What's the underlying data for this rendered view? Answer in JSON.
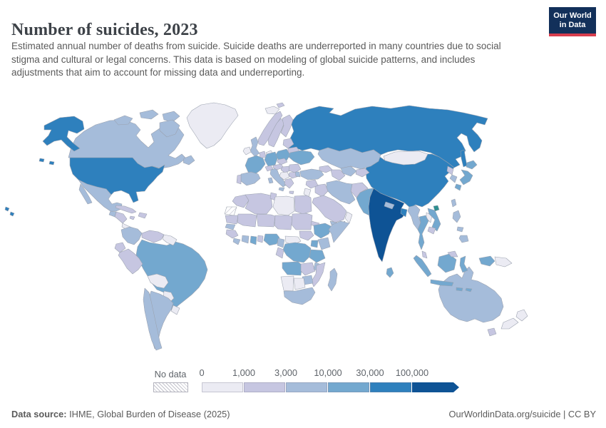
{
  "header": {
    "title": "Number of suicides, 2023",
    "subtitle_part1": "Estimated annual number of deaths from suicide. Suicide deaths are underreported in many countries due to social",
    "subtitle_part2": "stigma and cultural or legal concerns. This data is based on modeling of global suicide patterns, and includes adjustments that aim to account for missing data and underreporting."
  },
  "logo": {
    "line1": "Our World",
    "line2": "in Data"
  },
  "legend": {
    "no_data_label": "No data",
    "tick_labels": [
      "0",
      "1,000",
      "3,000",
      "10,000",
      "30,000",
      "100,000"
    ]
  },
  "footer": {
    "source_label": "Data source:",
    "source_value": " IHME, Global Burden of Disease (2025)",
    "right_text": "OurWorldinData.org/suicide | CC BY"
  },
  "chart_data": {
    "type": "choropleth_map",
    "title": "Number of suicides, 2023",
    "year": "2023",
    "bin_edges": [
      "0",
      "1,000",
      "3,000",
      "10,000",
      "30,000",
      "100,000",
      "open-ended"
    ],
    "bin_colors": [
      "#ebebf3",
      "#c6c6e1",
      "#a5bcda",
      "#73a8cf",
      "#2e80bd",
      "#0e5395"
    ],
    "no_data_style": "white-diagonal-hatch",
    "special_marker_color": "#2e8f8f",
    "border_color": "#9aa1ae",
    "country_bins": {
      "greenland": 0,
      "canada": 2,
      "canada-arctic-1": 2,
      "canada-arctic-2": 2,
      "canada-arctic-3": 2,
      "canada-arctic-4": 2,
      "newfoundland": 2,
      "alaska": 4,
      "usa": 4,
      "hawaii-1": 4,
      "hawaii-2": 4,
      "aleutians-1": 4,
      "aleutians-2": 4,
      "mexico": 2,
      "mexico-baja": 2,
      "guatemala": 2,
      "honduras-nicaragua": 1,
      "costa-rica-panama": 0,
      "cuba": 1,
      "hispaniola": 1,
      "jamaica": 1,
      "colombia": 2,
      "venezuela": 1,
      "guyanas": 0,
      "ecuador": 1,
      "peru": 1,
      "brazil": 3,
      "bolivia": 0,
      "paraguay": 0,
      "argentina": 2,
      "chile": 2,
      "uruguay": 0,
      "iceland": 0,
      "norway": 1,
      "sweden": 1,
      "finland": 1,
      "denmark": 0,
      "uk": 2,
      "ireland": 0,
      "baltics": 1,
      "belarus": 1,
      "poland": 3,
      "germany": 3,
      "netherlands-belgium": 1,
      "france": 3,
      "spain": 2,
      "portugal": 1,
      "italy": 2,
      "sicily": 2,
      "sardinia": 2,
      "switzerland": 1,
      "czechia": 1,
      "austria": 1,
      "hungary": 1,
      "romania": 1,
      "balkans": 0,
      "bulgaria": 1,
      "greece": 1,
      "crete": 1,
      "ukraine": 3,
      "turkey": 2,
      "turkey-west": 2,
      "russia": 4,
      "sakhalin": 4,
      "svalbard": 1,
      "kazakhstan": 2,
      "uzbekistan": 2,
      "turkmenistan": 1,
      "kyrgyzstan-tajikistan": 1,
      "caucasus": 1,
      "mongolia": 0,
      "china": 4,
      "north-korea": 1,
      "south-korea": 2,
      "japan-hokkaido": 3,
      "japan-honshu": 3,
      "japan-kyushu": 3,
      "taiwan": 2,
      "hainan-island": "special",
      "india": 5,
      "pakistan": 3,
      "afghanistan": 1,
      "nepal": 2,
      "bangladesh": 4,
      "sri-lanka": 3,
      "iran": 2,
      "iraq": 1,
      "syria": 1,
      "jordan-israel": 0,
      "saudi-arabia": 1,
      "yemen": 2,
      "oman": 0,
      "morocco": 1,
      "western-sahara": "no-data",
      "algeria": 1,
      "tunisia": 1,
      "libya": 0,
      "egypt": 1,
      "mauritania": 1,
      "mali": 1,
      "niger": 1,
      "chad": 1,
      "sudan": 1,
      "eritrea": 1,
      "senegal": 2,
      "guinea-region": 1,
      "sierra-leone-liberia": 2,
      "ivory-coast": 2,
      "ghana": 3,
      "togo-benin": 1,
      "nigeria": 3,
      "cameroon": 2,
      "central-african-republic": 0,
      "south-sudan": 1,
      "ethiopia": 3,
      "somalia": 2,
      "kenya": 2,
      "uganda": 3,
      "dr-congo": 3,
      "congo-gabon": 1,
      "tanzania": 3,
      "angola": 3,
      "zambia": 1,
      "malawi": 2,
      "mozambique": 1,
      "zimbabwe": 2,
      "namibia": 0,
      "botswana": 0,
      "south-africa": 2,
      "madagascar": 2,
      "myanmar": 2,
      "thailand": 3,
      "laos": 0,
      "vietnam": 3,
      "cambodia": 1,
      "malaysia-peninsula": 1,
      "malaysia-north-borneo": 1,
      "sumatra": 3,
      "java": 3,
      "borneo-kalimantan": 3,
      "sulawesi": 3,
      "lesser-sunda-1": 3,
      "lesser-sunda-2": 3,
      "west-papua": 3,
      "papua-new-guinea": 0,
      "philippines-luzon": 2,
      "philippines-visayas": 2,
      "philippines-mindanao": 2,
      "australia": 2,
      "tasmania": 1,
      "nz-north": 0,
      "nz-south": 0
    }
  }
}
